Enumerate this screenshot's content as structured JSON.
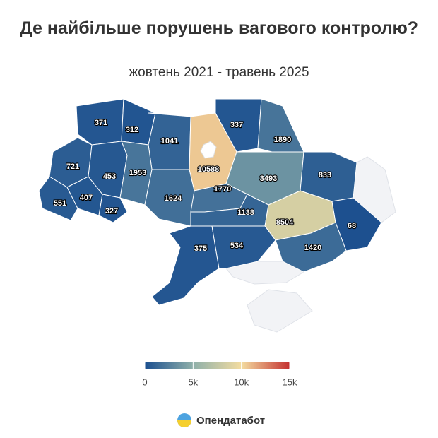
{
  "header": {
    "title": "Де найбільше порушень вагового контролю?",
    "subtitle": "жовтень 2021 - травень 2025"
  },
  "map": {
    "values": [
      371,
      312,
      1041,
      10588,
      337,
      1890,
      721,
      453,
      1953,
      3493,
      833,
      551,
      407,
      327,
      1624,
      1770,
      1138,
      8504,
      68,
      375,
      534,
      1420
    ],
    "colorscale": [
      "#1b4f8f",
      "#8fb0aa",
      "#f3dca0",
      "#c4302f"
    ],
    "lim": [
      0,
      15000
    ],
    "ticks": [
      0,
      {
        "value": 5000,
        "label": "5k"
      },
      {
        "value": 10000,
        "label": "10k"
      },
      {
        "value": 15000,
        "label": "15k"
      }
    ]
  },
  "footer": {
    "brand": "Опендатабот"
  }
}
